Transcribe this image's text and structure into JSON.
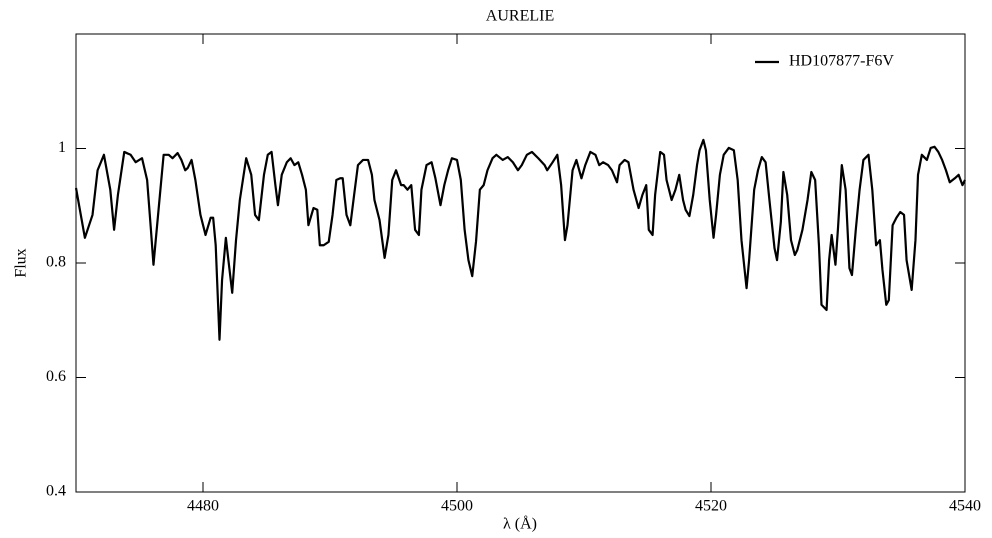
{
  "chart_data": {
    "type": "line",
    "title": "AURELIE",
    "xlabel": "λ (Å)",
    "ylabel": "Flux",
    "xlim": [
      4470,
      4540
    ],
    "xticks": [
      4480,
      4500,
      4520,
      4540
    ],
    "ylim": [
      0.4,
      1.2
    ],
    "yticks": [
      0.4,
      0.6,
      0.8,
      1
    ],
    "legend": "upper right",
    "x": [
      4470.0,
      4470.7,
      4471.3,
      4471.7,
      4472.2,
      4472.7,
      4473.0,
      4473.3,
      4473.8,
      4474.3,
      4474.7,
      4475.2,
      4475.6,
      4475.9,
      4476.1,
      4476.5,
      4476.9,
      4477.3,
      4477.6,
      4478.0,
      4478.3,
      4478.6,
      4478.8,
      4479.1,
      4479.4,
      4479.8,
      4480.2,
      4480.6,
      4480.8,
      4481.0,
      4481.3,
      4481.5,
      4481.8,
      4482.0,
      4482.3,
      4482.6,
      4482.9,
      4483.4,
      4483.8,
      4484.1,
      4484.4,
      4484.8,
      4485.1,
      4485.4,
      4485.7,
      4485.9,
      4486.2,
      4486.6,
      4486.9,
      4487.2,
      4487.5,
      4487.8,
      4488.1,
      4488.3,
      4488.7,
      4489.0,
      4489.2,
      4489.5,
      4489.9,
      4490.2,
      4490.5,
      4490.8,
      4491.0,
      4491.3,
      4491.6,
      4491.9,
      4492.2,
      4492.6,
      4493.0,
      4493.3,
      4493.5,
      4493.9,
      4494.3,
      4494.6,
      4494.9,
      4495.2,
      4495.6,
      4495.8,
      4496.1,
      4496.4,
      4496.7,
      4497.0,
      4497.2,
      4497.6,
      4498.0,
      4498.3,
      4498.7,
      4499.0,
      4499.3,
      4499.6,
      4500.0,
      4500.3,
      4500.6,
      4500.9,
      4501.2,
      4501.5,
      4501.8,
      4502.1,
      4502.4,
      4502.8,
      4503.1,
      4503.6,
      4504.0,
      4504.4,
      4504.8,
      4505.1,
      4505.5,
      4505.9,
      4506.4,
      4506.9,
      4507.1,
      4507.5,
      4507.9,
      4508.2,
      4508.5,
      4508.7,
      4509.1,
      4509.4,
      4509.8,
      4510.1,
      4510.5,
      4510.9,
      4511.2,
      4511.5,
      4511.9,
      4512.2,
      4512.6,
      4512.8,
      4513.2,
      4513.5,
      4513.9,
      4514.3,
      4514.6,
      4514.9,
      4515.1,
      4515.4,
      4515.6,
      4516.0,
      4516.3,
      4516.5,
      4516.9,
      4517.2,
      4517.5,
      4517.8,
      4518.0,
      4518.3,
      4518.6,
      4518.9,
      4519.1,
      4519.4,
      4519.6,
      4519.9,
      4520.2,
      4520.4,
      4520.7,
      4521.0,
      4521.4,
      4521.8,
      4522.1,
      4522.4,
      4522.8,
      4523.0,
      4523.4,
      4523.7,
      4524.0,
      4524.3,
      4524.6,
      4525.0,
      4525.2,
      4525.5,
      4525.7,
      4526.0,
      4526.3,
      4526.6,
      4526.8,
      4527.2,
      4527.6,
      4527.9,
      4528.2,
      4528.5,
      4528.7,
      4529.1,
      4529.3,
      4529.5,
      4529.8,
      4530.0,
      4530.3,
      4530.6,
      4530.9,
      4531.1,
      4531.4,
      4531.7,
      4532.0,
      4532.4,
      4532.7,
      4533.0,
      4533.3,
      4533.5,
      4533.8,
      4534.0,
      4534.3,
      4534.6,
      4534.9,
      4535.2,
      4535.4,
      4535.8,
      4536.1,
      4536.3,
      4536.6,
      4537.0,
      4537.3,
      4537.6,
      4537.9,
      4538.2,
      4538.5,
      4538.8,
      4539.2,
      4539.5,
      4539.8,
      4540.0
    ],
    "series": [
      {
        "name": "HD107877-F6V",
        "color": "#000000",
        "values": [
          0.931,
          0.844,
          0.884,
          0.962,
          0.989,
          0.928,
          0.858,
          0.919,
          0.994,
          0.989,
          0.976,
          0.983,
          0.945,
          0.858,
          0.797,
          0.893,
          0.989,
          0.989,
          0.983,
          0.992,
          0.98,
          0.962,
          0.966,
          0.98,
          0.945,
          0.884,
          0.849,
          0.879,
          0.879,
          0.831,
          0.666,
          0.77,
          0.844,
          0.805,
          0.748,
          0.84,
          0.91,
          0.983,
          0.954,
          0.884,
          0.875,
          0.954,
          0.989,
          0.994,
          0.936,
          0.901,
          0.954,
          0.976,
          0.983,
          0.971,
          0.976,
          0.954,
          0.928,
          0.866,
          0.896,
          0.893,
          0.831,
          0.831,
          0.837,
          0.884,
          0.945,
          0.948,
          0.948,
          0.884,
          0.866,
          0.919,
          0.971,
          0.98,
          0.98,
          0.954,
          0.91,
          0.875,
          0.809,
          0.849,
          0.945,
          0.962,
          0.936,
          0.936,
          0.928,
          0.936,
          0.858,
          0.849,
          0.928,
          0.971,
          0.976,
          0.948,
          0.901,
          0.936,
          0.962,
          0.983,
          0.98,
          0.945,
          0.858,
          0.805,
          0.777,
          0.838,
          0.928,
          0.936,
          0.962,
          0.983,
          0.989,
          0.98,
          0.985,
          0.976,
          0.962,
          0.971,
          0.989,
          0.994,
          0.983,
          0.971,
          0.962,
          0.975,
          0.989,
          0.936,
          0.84,
          0.866,
          0.962,
          0.98,
          0.948,
          0.971,
          0.994,
          0.989,
          0.971,
          0.976,
          0.971,
          0.962,
          0.941,
          0.971,
          0.98,
          0.976,
          0.928,
          0.896,
          0.919,
          0.936,
          0.858,
          0.849,
          0.919,
          0.994,
          0.989,
          0.945,
          0.91,
          0.928,
          0.954,
          0.91,
          0.893,
          0.882,
          0.919,
          0.971,
          0.997,
          1.015,
          0.997,
          0.91,
          0.844,
          0.884,
          0.954,
          0.989,
          1.001,
          0.997,
          0.945,
          0.84,
          0.756,
          0.805,
          0.928,
          0.962,
          0.985,
          0.976,
          0.91,
          0.826,
          0.805,
          0.872,
          0.959,
          0.919,
          0.84,
          0.814,
          0.823,
          0.858,
          0.91,
          0.959,
          0.945,
          0.831,
          0.727,
          0.718,
          0.805,
          0.849,
          0.797,
          0.861,
          0.971,
          0.928,
          0.791,
          0.779,
          0.858,
          0.928,
          0.98,
          0.989,
          0.928,
          0.831,
          0.84,
          0.788,
          0.727,
          0.735,
          0.866,
          0.879,
          0.889,
          0.884,
          0.805,
          0.753,
          0.84,
          0.954,
          0.989,
          0.98,
          1.001,
          1.003,
          0.994,
          0.98,
          0.962,
          0.941,
          0.948,
          0.954,
          0.936,
          0.945
        ]
      }
    ]
  }
}
